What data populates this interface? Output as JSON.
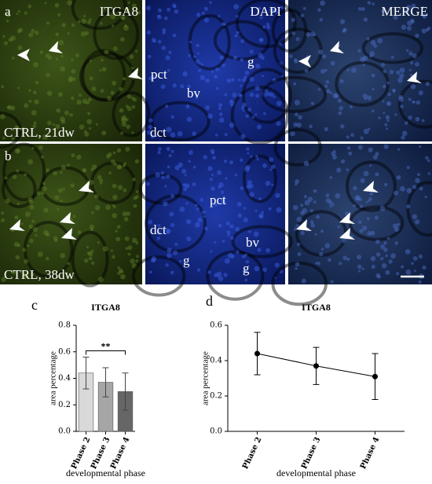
{
  "figure": {
    "channels": [
      "ITGA8",
      "DAPI",
      "MERGE"
    ],
    "panels": [
      {
        "letter": "a",
        "condition": "CTRL, 21dw",
        "dapi_labels": [
          "pct",
          "bv",
          "dct",
          "g"
        ]
      },
      {
        "letter": "b",
        "condition": "CTRL, 38dw",
        "dapi_labels": [
          "pct",
          "dct",
          "bv",
          "g",
          "g"
        ]
      }
    ]
  },
  "chart_data": [
    {
      "type": "bar",
      "panel": "c",
      "title": "ITGA8",
      "xlabel": "developmental phase",
      "ylabel": "area percentage",
      "categories": [
        "Phase 2",
        "Phase 3",
        "Phase 4"
      ],
      "values": [
        0.44,
        0.37,
        0.3
      ],
      "errors": [
        0.12,
        0.11,
        0.14
      ],
      "colors": [
        "#d9d9d9",
        "#a6a6a6",
        "#666666"
      ],
      "ylim": [
        0,
        0.8
      ],
      "yticks": [
        {
          "value": 0,
          "label": "0.0"
        },
        {
          "value": 0.2,
          "label": "0.2"
        },
        {
          "value": 0.4,
          "label": "0.4"
        },
        {
          "value": 0.6,
          "label": "0.6"
        },
        {
          "value": 0.8,
          "label": "0.8"
        }
      ],
      "significance": {
        "label": "**",
        "between": [
          "Phase 2",
          "Phase 4"
        ]
      }
    },
    {
      "type": "line",
      "panel": "d",
      "title": "ITGA8",
      "xlabel": "developmental phase",
      "ylabel": "area percentage",
      "categories": [
        "Phase 2",
        "Phase 3",
        "Phase 4"
      ],
      "values": [
        0.44,
        0.37,
        0.31
      ],
      "errors": [
        0.12,
        0.105,
        0.13
      ],
      "color": "#000000",
      "ylim": [
        0,
        0.6
      ],
      "yticks": [
        {
          "value": 0,
          "label": "0.0"
        },
        {
          "value": 0.2,
          "label": "0.2"
        },
        {
          "value": 0.4,
          "label": "0.4"
        },
        {
          "value": 0.6,
          "label": "0.6"
        }
      ]
    }
  ]
}
